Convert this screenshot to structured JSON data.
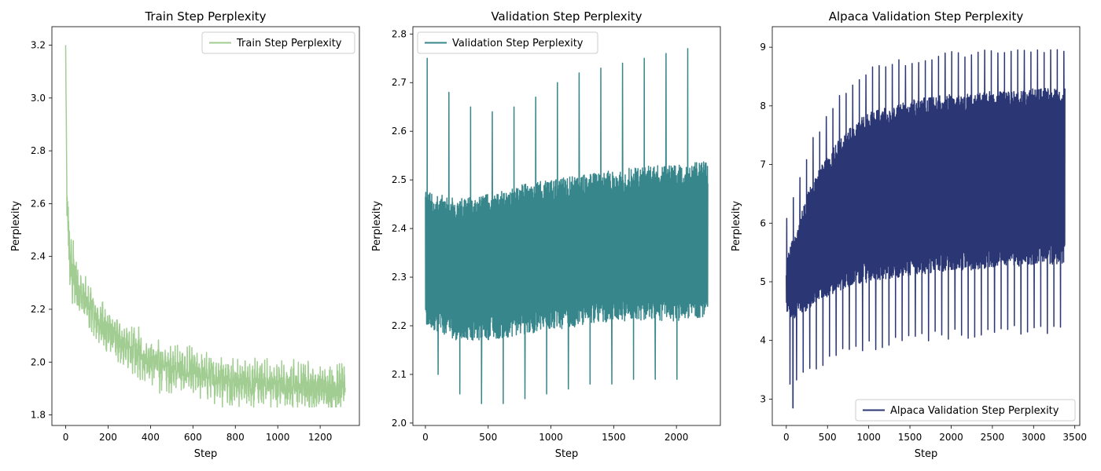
{
  "chart_data": [
    {
      "type": "line",
      "title": "Train Step Perplexity",
      "xlabel": "Step",
      "ylabel": "Perplexity",
      "xlim": [
        -65,
        1385
      ],
      "ylim": [
        1.76,
        3.27
      ],
      "xticks": [
        0,
        200,
        400,
        600,
        800,
        1000,
        1200
      ],
      "yticks": [
        1.8,
        2.0,
        2.2,
        2.4,
        2.6,
        2.8,
        3.0,
        3.2
      ],
      "xtick_labels": [
        "0",
        "200",
        "400",
        "600",
        "800",
        "1000",
        "1200"
      ],
      "ytick_labels": [
        "1.8",
        "2.0",
        "2.2",
        "2.4",
        "2.6",
        "2.8",
        "3.0",
        "3.2"
      ],
      "legend_position": "upper-right",
      "series": [
        {
          "name": "Train Step Perplexity",
          "color": "#a1cd92",
          "x": [
            0,
            3,
            6,
            10,
            15,
            20,
            30,
            40,
            50,
            60,
            70,
            80,
            100,
            120,
            150,
            200,
            250,
            300,
            350,
            400,
            450,
            500,
            550,
            600,
            650,
            700,
            800,
            900,
            1000,
            1100,
            1200,
            1300,
            1318
          ],
          "y": [
            3.2,
            2.8,
            2.6,
            2.55,
            2.45,
            2.38,
            2.34,
            2.32,
            2.3,
            2.28,
            2.26,
            2.25,
            2.22,
            2.2,
            2.16,
            2.12,
            2.08,
            2.05,
            2.03,
            2.01,
            1.99,
            1.98,
            1.97,
            1.96,
            1.95,
            1.94,
            1.93,
            1.92,
            1.915,
            1.91,
            1.905,
            1.9,
            1.9
          ],
          "spread": 0.05,
          "min": 1.83,
          "max": 3.2
        }
      ]
    },
    {
      "type": "line",
      "title": "Validation Step Perplexity",
      "xlabel": "Step",
      "ylabel": "Perplexity",
      "xlim": [
        -100,
        2350
      ],
      "ylim": [
        1.995,
        2.815
      ],
      "xticks": [
        0,
        500,
        1000,
        1500,
        2000
      ],
      "yticks": [
        2.0,
        2.1,
        2.2,
        2.3,
        2.4,
        2.5,
        2.6,
        2.7,
        2.8
      ],
      "xtick_labels": [
        "0",
        "500",
        "1000",
        "1500",
        "2000"
      ],
      "ytick_labels": [
        "2.0",
        "2.1",
        "2.2",
        "2.3",
        "2.4",
        "2.5",
        "2.6",
        "2.7",
        "2.8"
      ],
      "legend_position": "upper-left",
      "series": [
        {
          "name": "Validation Step Perplexity",
          "color": "#37868b",
          "x": [
            0,
            250,
            500,
            750,
            1000,
            1250,
            1500,
            1750,
            2000,
            2250
          ],
          "upper": [
            2.48,
            2.46,
            2.47,
            2.49,
            2.5,
            2.51,
            2.52,
            2.53,
            2.53,
            2.54
          ],
          "lower": [
            2.2,
            2.17,
            2.17,
            2.18,
            2.19,
            2.2,
            2.21,
            2.21,
            2.21,
            2.22
          ],
          "spikes_high": [
            2.75,
            2.68,
            2.65,
            2.64,
            2.65,
            2.67,
            2.7,
            2.72,
            2.73,
            2.74,
            2.75,
            2.76,
            2.77
          ],
          "spikes_low": [
            2.1,
            2.06,
            2.04,
            2.04,
            2.05,
            2.06,
            2.07,
            2.08,
            2.08,
            2.09,
            2.09,
            2.09
          ],
          "min": 2.035,
          "max": 2.775
        }
      ]
    },
    {
      "type": "line",
      "title": "Alpaca Validation Step Perplexity",
      "xlabel": "Step",
      "ylabel": "Perplexity",
      "xlim": [
        -170,
        3560
      ],
      "ylim": [
        2.55,
        9.35
      ],
      "xticks": [
        0,
        500,
        1000,
        1500,
        2000,
        2500,
        3000,
        3500
      ],
      "yticks": [
        3,
        4,
        5,
        6,
        7,
        8,
        9
      ],
      "xtick_labels": [
        "0",
        "500",
        "1000",
        "1500",
        "2000",
        "2500",
        "3000",
        "3500"
      ],
      "ytick_labels": [
        "3",
        "4",
        "5",
        "6",
        "7",
        "8",
        "9"
      ],
      "legend_position": "lower-right",
      "series": [
        {
          "name": "Alpaca Validation Step Perplexity",
          "color": "#2b3674",
          "x": [
            0,
            250,
            500,
            750,
            1000,
            1250,
            1500,
            1750,
            2000,
            2250,
            2500,
            2750,
            3000,
            3250,
            3380
          ],
          "upper": [
            5.4,
            6.5,
            7.2,
            7.6,
            7.9,
            8.0,
            8.1,
            8.15,
            8.2,
            8.2,
            8.25,
            8.25,
            8.3,
            8.3,
            8.3
          ],
          "lower": [
            4.3,
            4.5,
            4.75,
            4.9,
            5.0,
            5.05,
            5.1,
            5.15,
            5.2,
            5.2,
            5.25,
            5.25,
            5.3,
            5.3,
            5.3
          ],
          "min": 2.85,
          "max": 9.02
        }
      ]
    }
  ]
}
